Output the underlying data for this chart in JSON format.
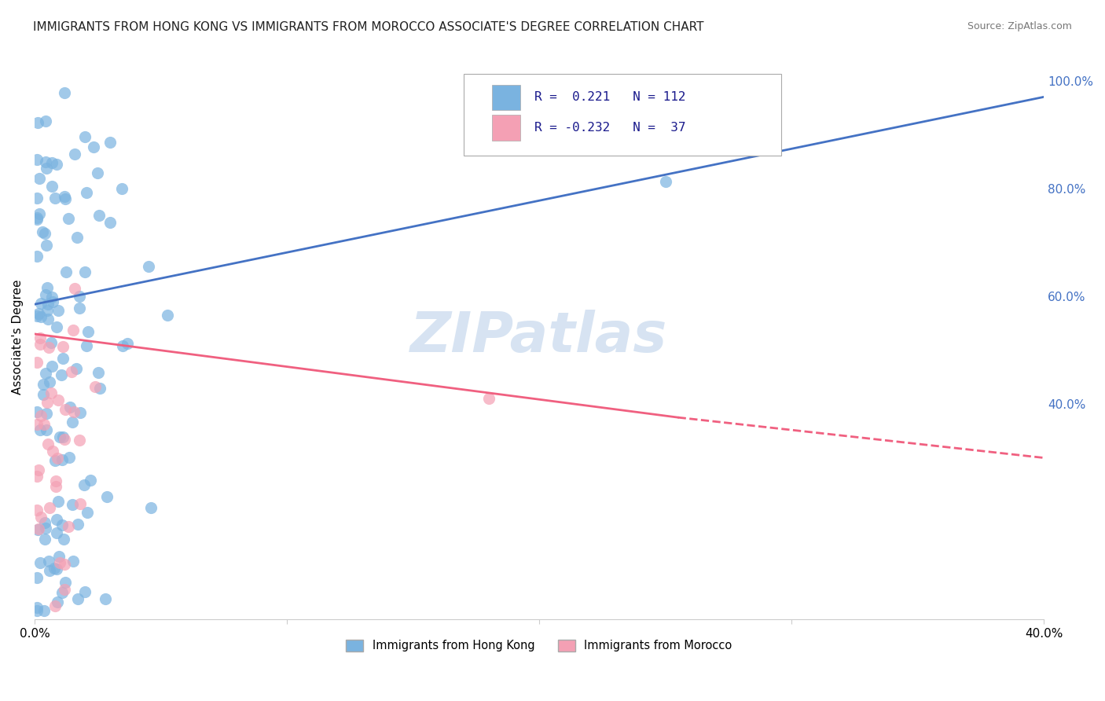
{
  "title": "IMMIGRANTS FROM HONG KONG VS IMMIGRANTS FROM MOROCCO ASSOCIATE'S DEGREE CORRELATION CHART",
  "source": "Source: ZipAtlas.com",
  "ylabel": "Associate's Degree",
  "ytick_labels": [
    "100.0%",
    "80.0%",
    "60.0%",
    "40.0%"
  ],
  "ytick_values": [
    1.0,
    0.8,
    0.6,
    0.4
  ],
  "xlim": [
    0.0,
    0.4
  ],
  "ylim": [
    0.0,
    1.05
  ],
  "hk_color": "#7ab3e0",
  "morocco_color": "#f4a0b4",
  "hk_line_color": "#4472c4",
  "morocco_line_color": "#f06080",
  "hk_line": {
    "x0": 0.0,
    "y0": 0.585,
    "x1": 0.4,
    "y1": 0.97
  },
  "morocco_line_solid_end_x": 0.255,
  "morocco_line_solid_end_y": 0.375,
  "morocco_line": {
    "x0": 0.0,
    "y0": 0.53,
    "x1": 0.4,
    "y1": 0.3
  },
  "grid_color": "#cccccc",
  "background_color": "#ffffff",
  "watermark_color": "#d0dff0",
  "hk_R": "0.221",
  "hk_N": "112",
  "mor_R": "-0.232",
  "mor_N": "37"
}
